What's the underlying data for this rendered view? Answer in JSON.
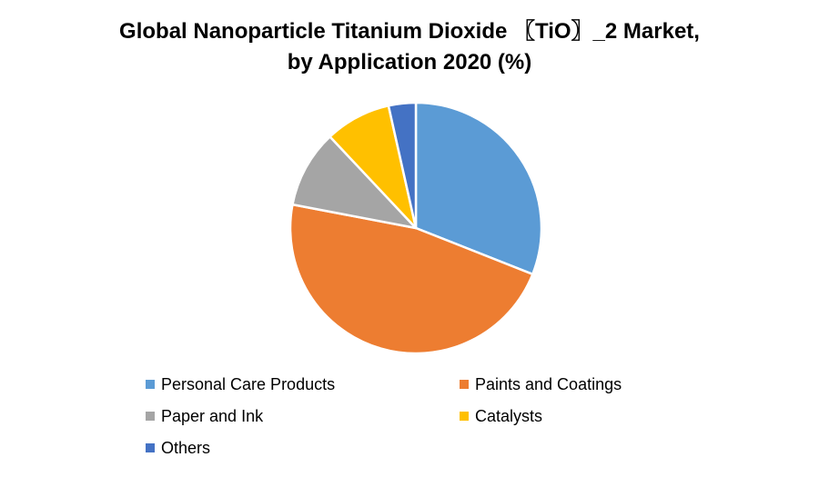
{
  "chart_data": {
    "type": "pie",
    "title_line1": "Global Nanoparticle Titanium Dioxide 〖TiO〗_2 Market,",
    "title_line2": "by Application 2020 (%)",
    "legend_position": "bottom",
    "categories": [
      "Personal Care Products",
      "Paints and Coatings",
      "Paper and Ink",
      "Catalysts",
      "Others"
    ],
    "values": [
      31,
      47,
      10,
      8.5,
      3.5
    ],
    "colors": [
      "#5B9BD5",
      "#ED7D31",
      "#A5A5A5",
      "#FFC000",
      "#4472C4"
    ],
    "start_angle": "top (12 o'clock)",
    "direction": "clockwise"
  }
}
